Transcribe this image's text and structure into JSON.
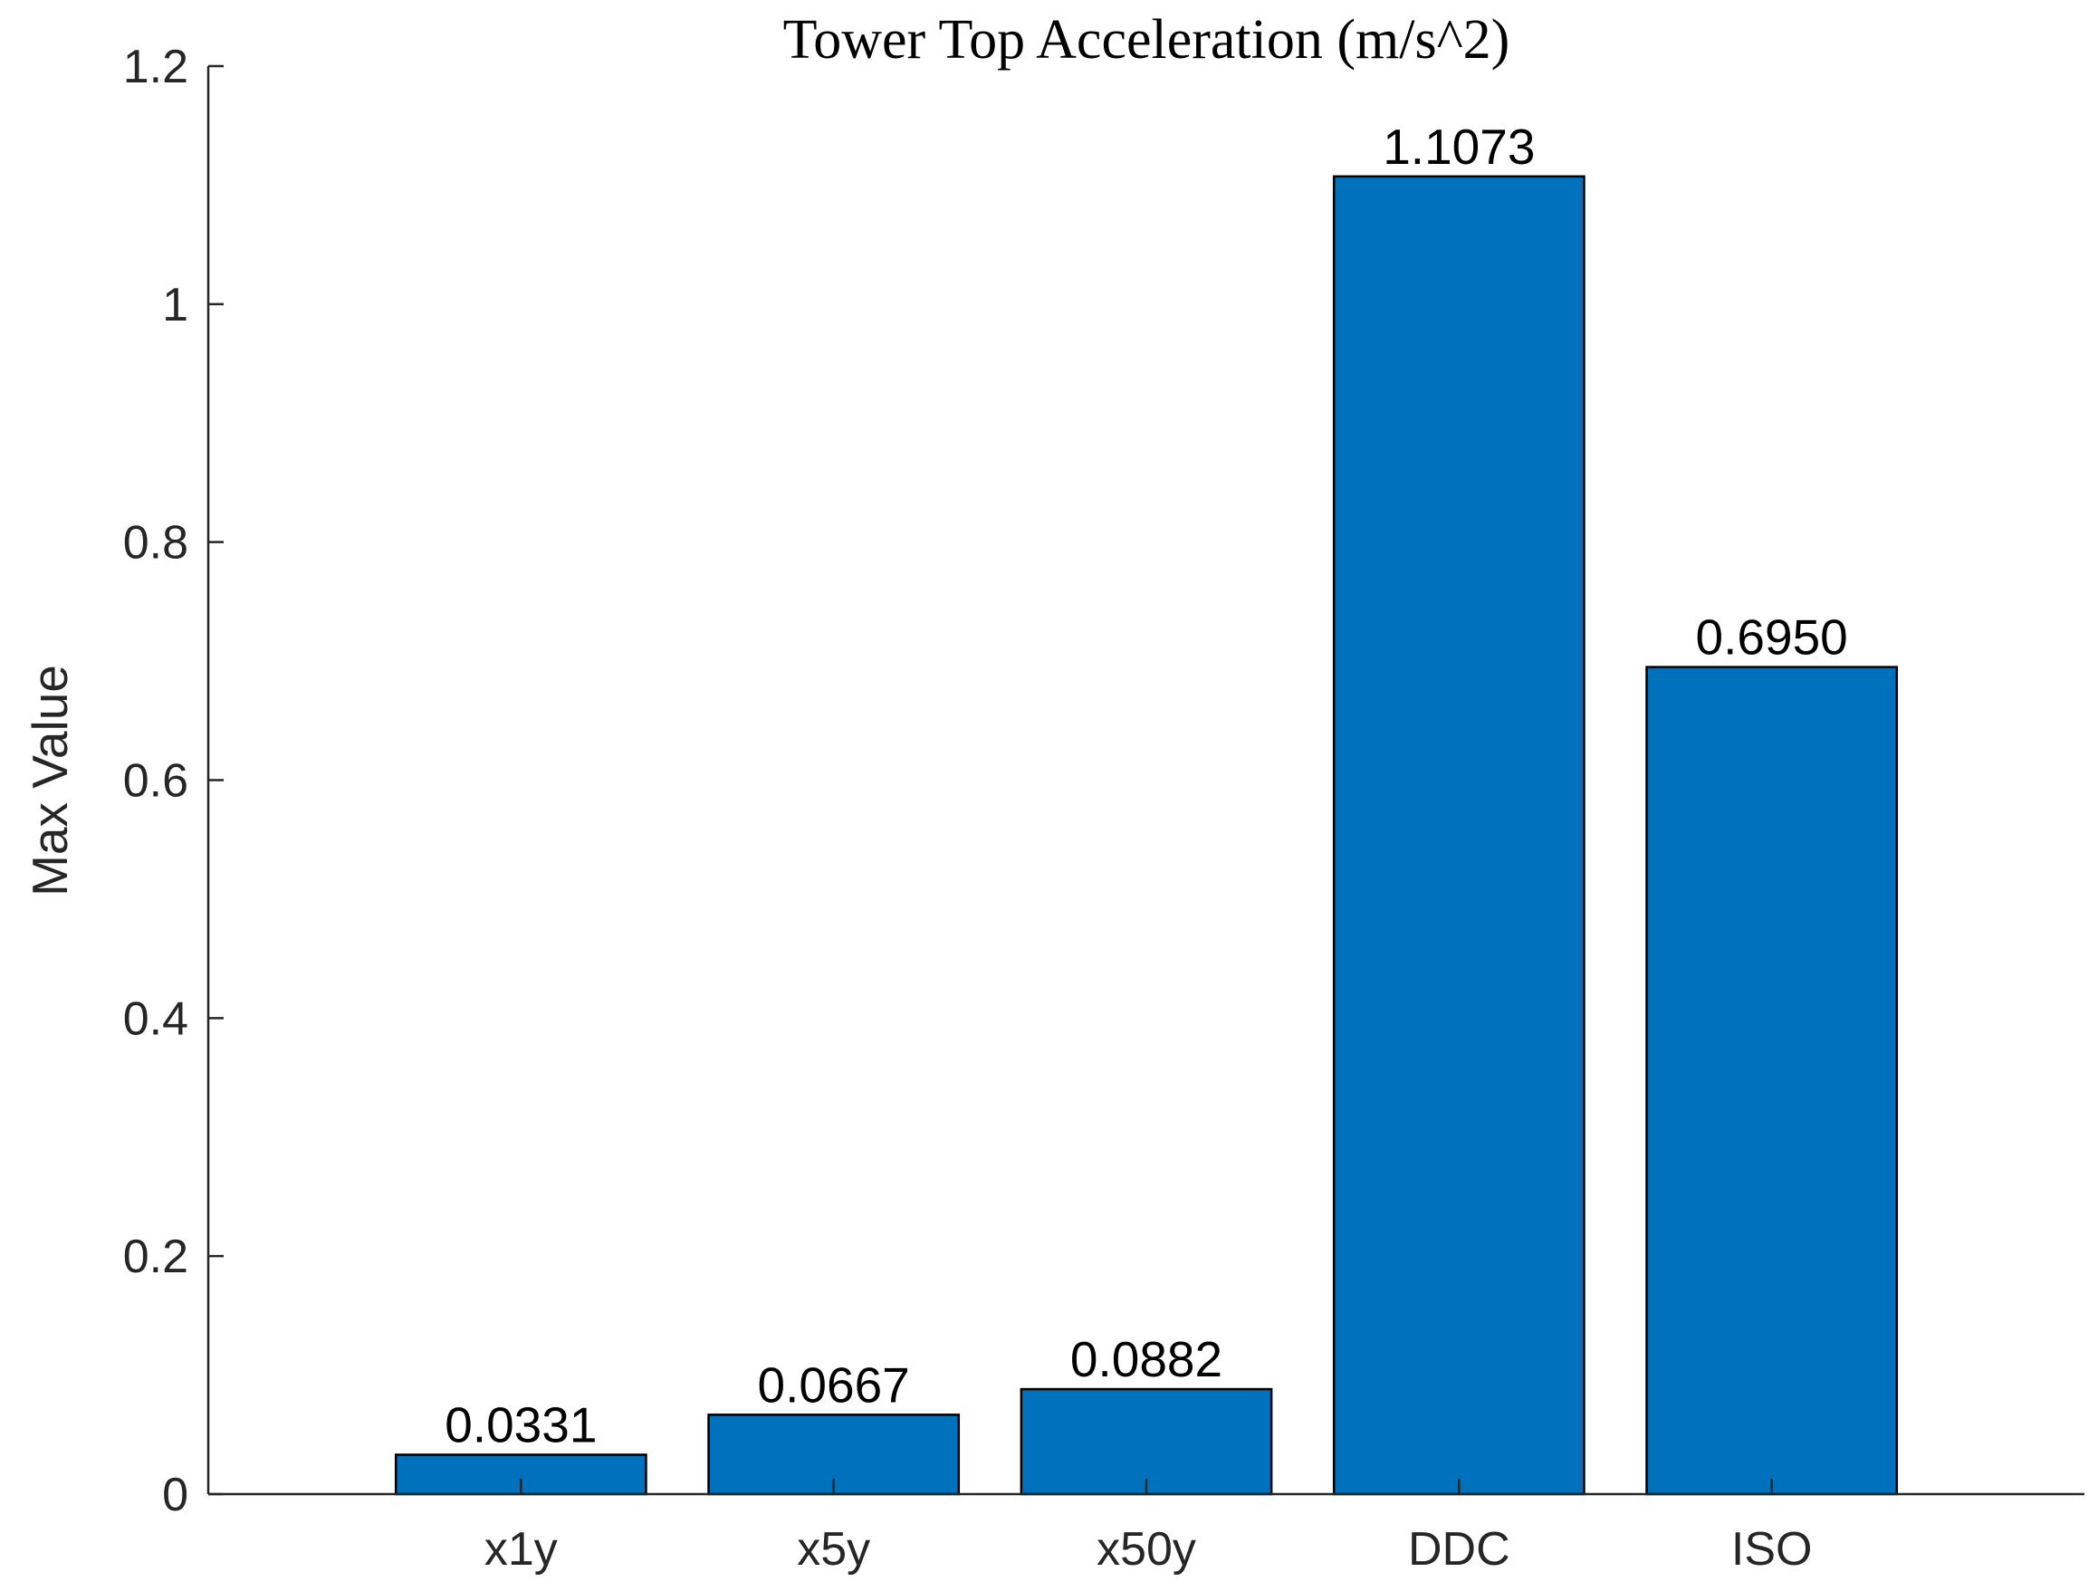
{
  "chart_data": {
    "type": "bar",
    "title": "Tower Top Acceleration (m/s^2)",
    "xlabel": "",
    "ylabel": "Max Value",
    "categories": [
      "x1y",
      "x5y",
      "x50y",
      "DDC",
      "ISO"
    ],
    "values": [
      0.0331,
      0.0667,
      0.0882,
      1.1073,
      0.695
    ],
    "data_labels": [
      "0.0331",
      "0.0667",
      "0.0882",
      "1.1073",
      "0.6950"
    ],
    "ylim": [
      0,
      1.2
    ],
    "xlim": [
      0,
      6
    ],
    "y_ticks": [
      0,
      0.2,
      0.4,
      0.6,
      0.8,
      1.0,
      1.2
    ],
    "y_tick_labels": [
      "0",
      "0.2",
      "0.4",
      "0.6",
      "0.8",
      "1",
      "1.2"
    ],
    "grid": false,
    "bar_color": "#0072BD"
  }
}
